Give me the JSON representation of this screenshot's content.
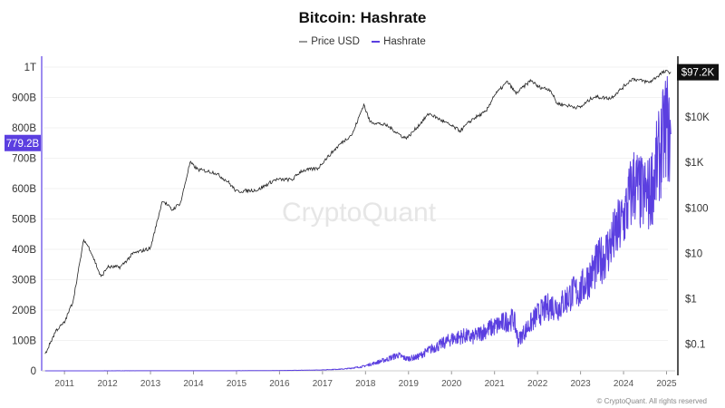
{
  "chart_data": {
    "type": "line",
    "title": "Bitcoin: Hashrate",
    "legend": {
      "placement": "top-center",
      "entries": [
        "Price USD",
        "Hashrate"
      ]
    },
    "colors": {
      "Price USD": "#222222",
      "Hashrate": "#5b3fe0"
    },
    "watermark": "CryptoQuant",
    "copyright": "© CryptoQuant. All rights reserved",
    "x_ticks": [
      "2011",
      "2012",
      "2013",
      "2014",
      "2015",
      "2016",
      "2017",
      "2018",
      "2019",
      "2020",
      "2021",
      "2022",
      "2023",
      "2024",
      "2025"
    ],
    "xlim": [
      2010.47,
      2025.2
    ],
    "y_left": {
      "ticks": [
        "0",
        "100B",
        "200B",
        "300B",
        "400B",
        "500B",
        "600B",
        "700B",
        "800B",
        "900B",
        "1T"
      ],
      "range": [
        0,
        1000
      ],
      "unit": "B",
      "scale": "linear",
      "current_label": "779.2B"
    },
    "y_right": {
      "ticks": [
        "$0.1",
        "$1",
        "$10",
        "$100",
        "$1K",
        "$10K"
      ],
      "scale": "log",
      "range": [
        0.026,
        126000
      ],
      "current_label": "$97.2K"
    },
    "grid": true,
    "series": [
      {
        "name": "Price USD",
        "axis": "right",
        "points": [
          [
            2010.55,
            0.06
          ],
          [
            2010.8,
            0.2
          ],
          [
            2011.0,
            0.3
          ],
          [
            2011.2,
            0.9
          ],
          [
            2011.45,
            20
          ],
          [
            2011.6,
            12
          ],
          [
            2011.85,
            3
          ],
          [
            2012.0,
            5
          ],
          [
            2012.3,
            5
          ],
          [
            2012.6,
            10
          ],
          [
            2013.0,
            13
          ],
          [
            2013.28,
            150
          ],
          [
            2013.5,
            90
          ],
          [
            2013.7,
            130
          ],
          [
            2013.92,
            1000
          ],
          [
            2014.1,
            700
          ],
          [
            2014.5,
            600
          ],
          [
            2014.8,
            380
          ],
          [
            2015.0,
            230
          ],
          [
            2015.5,
            250
          ],
          [
            2015.9,
            420
          ],
          [
            2016.3,
            420
          ],
          [
            2016.5,
            650
          ],
          [
            2016.9,
            750
          ],
          [
            2017.0,
            1000
          ],
          [
            2017.4,
            2500
          ],
          [
            2017.7,
            4300
          ],
          [
            2017.96,
            19000
          ],
          [
            2018.1,
            8000
          ],
          [
            2018.5,
            6500
          ],
          [
            2018.9,
            3500
          ],
          [
            2019.0,
            3700
          ],
          [
            2019.48,
            12000
          ],
          [
            2019.9,
            7200
          ],
          [
            2020.2,
            5000
          ],
          [
            2020.5,
            9200
          ],
          [
            2020.8,
            13000
          ],
          [
            2020.98,
            29000
          ],
          [
            2021.3,
            60000
          ],
          [
            2021.5,
            33000
          ],
          [
            2021.85,
            65000
          ],
          [
            2022.0,
            47000
          ],
          [
            2022.3,
            40000
          ],
          [
            2022.45,
            20000
          ],
          [
            2022.9,
            16500
          ],
          [
            2023.0,
            16500
          ],
          [
            2023.3,
            28000
          ],
          [
            2023.7,
            26000
          ],
          [
            2023.95,
            42000
          ],
          [
            2024.2,
            70000
          ],
          [
            2024.6,
            58000
          ],
          [
            2024.9,
            95000
          ],
          [
            2025.0,
            100000
          ],
          [
            2025.1,
            97200
          ]
        ]
      },
      {
        "name": "Hashrate",
        "axis": "left",
        "points": [
          [
            2010.55,
            0
          ],
          [
            2015.0,
            0.4
          ],
          [
            2016.0,
            1
          ],
          [
            2016.9,
            2.5
          ],
          [
            2017.5,
            6
          ],
          [
            2017.9,
            13
          ],
          [
            2018.2,
            25
          ],
          [
            2018.5,
            38
          ],
          [
            2018.75,
            52
          ],
          [
            2018.95,
            40
          ],
          [
            2019.2,
            45
          ],
          [
            2019.5,
            70
          ],
          [
            2019.8,
            90
          ],
          [
            2020.0,
            105
          ],
          [
            2020.3,
            115
          ],
          [
            2020.5,
            110
          ],
          [
            2020.8,
            135
          ],
          [
            2021.0,
            145
          ],
          [
            2021.3,
            165
          ],
          [
            2021.45,
            170
          ],
          [
            2021.55,
            100
          ],
          [
            2021.7,
            130
          ],
          [
            2022.0,
            185
          ],
          [
            2022.3,
            215
          ],
          [
            2022.5,
            210
          ],
          [
            2022.8,
            255
          ],
          [
            2023.0,
            265
          ],
          [
            2023.3,
            330
          ],
          [
            2023.6,
            390
          ],
          [
            2023.9,
            470
          ],
          [
            2024.0,
            500
          ],
          [
            2024.25,
            620
          ],
          [
            2024.4,
            580
          ],
          [
            2024.6,
            580
          ],
          [
            2024.8,
            690
          ],
          [
            2024.95,
            780
          ],
          [
            2025.0,
            830
          ],
          [
            2025.05,
            760
          ],
          [
            2025.1,
            779.2
          ]
        ]
      }
    ]
  }
}
